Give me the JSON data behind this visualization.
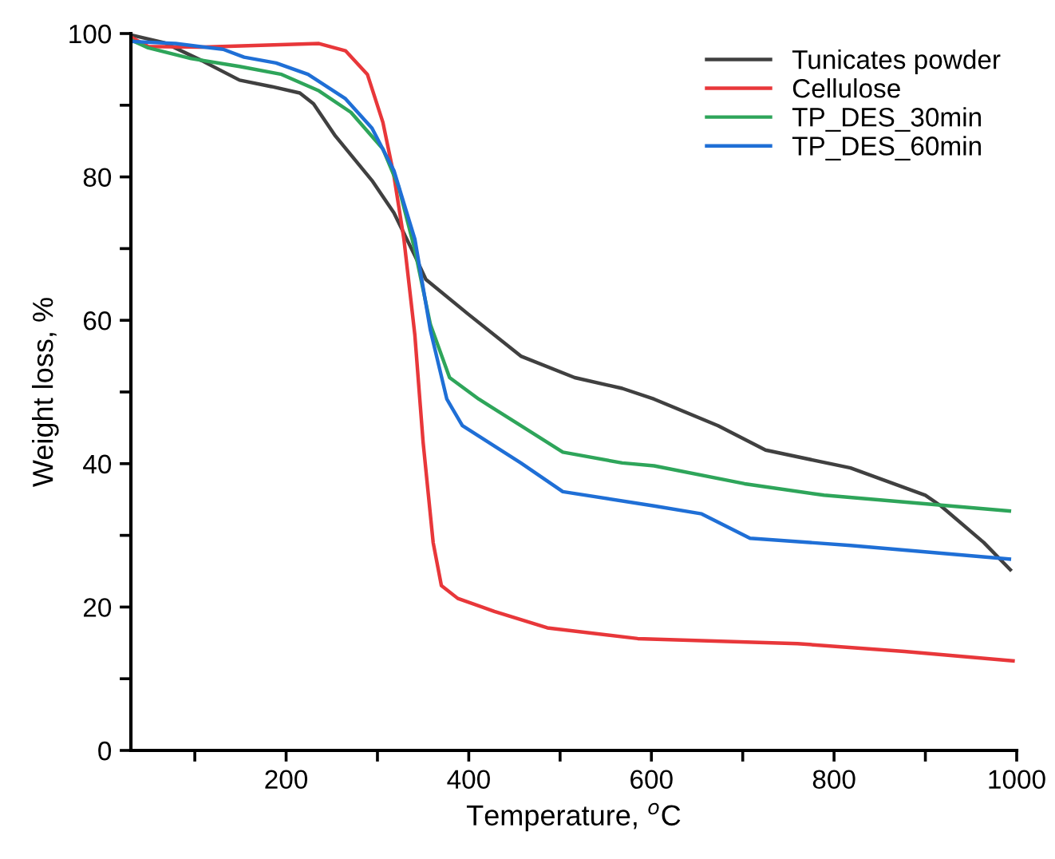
{
  "chart_data": {
    "type": "line",
    "xlabel": "Temperature, $^{o}$C",
    "ylabel": "Weight loss, %",
    "xlim": [
      30,
      1000
    ],
    "ylim": [
      0,
      100
    ],
    "xticks": [
      {
        "value": 100,
        "label": null
      },
      200,
      {
        "value": 300,
        "label": null
      },
      400,
      {
        "value": 500,
        "label": null
      },
      600,
      {
        "value": 700,
        "label": null
      },
      800,
      {
        "value": 900,
        "label": null
      },
      1000
    ],
    "yticks": [
      0,
      {
        "value": 10,
        "label": null
      },
      20,
      {
        "value": 30,
        "label": null
      },
      40,
      {
        "value": 50,
        "label": null
      },
      60,
      {
        "value": 70,
        "label": null
      },
      80,
      {
        "value": 90,
        "label": null
      },
      100
    ],
    "grid": false,
    "legend": "top right",
    "line_style": "solid",
    "marker": "none",
    "series": [
      {
        "name": "Tunicates powder",
        "color": "#404040",
        "x": [
          30,
          67,
          108,
          149,
          184,
          215,
          230,
          254,
          294,
          318,
          341,
          353,
          399,
          457,
          516,
          568,
          603,
          673,
          725,
          818,
          900,
          917,
          964,
          993
        ],
        "values": [
          99.8,
          98.7,
          96.2,
          93.5,
          92.6,
          91.7,
          90.2,
          85.7,
          79.5,
          75,
          69,
          65.7,
          60.9,
          55,
          52,
          50.5,
          49,
          45.3,
          41.9,
          39.4,
          35.6,
          34.1,
          29,
          25.2
        ]
      },
      {
        "name": "Cellulose",
        "color": "#e8373a",
        "x": [
          30,
          49,
          108,
          236,
          265,
          289,
          306,
          318,
          329,
          341,
          350,
          361,
          370,
          388,
          428,
          486,
          585,
          760,
          877,
          996
        ],
        "values": [
          99.5,
          98.2,
          98.1,
          98.6,
          97.6,
          94.3,
          87.6,
          80.2,
          71.3,
          57.9,
          43,
          29,
          23,
          21.2,
          19.4,
          17.1,
          15.6,
          14.9,
          13.8,
          12.5
        ]
      },
      {
        "name": "TP_DES_30min",
        "color": "#2ea55a",
        "x": [
          30,
          49,
          96,
          149,
          195,
          236,
          271,
          306,
          323,
          341,
          358,
          379,
          411,
          457,
          503,
          568,
          603,
          702,
          789,
          992
        ],
        "values": [
          99.1,
          98,
          96.5,
          95.4,
          94.3,
          92,
          89,
          83.9,
          78.7,
          69.8,
          59.4,
          52,
          49,
          45.3,
          41.6,
          40.1,
          39.7,
          37.2,
          35.6,
          33.4
        ]
      },
      {
        "name": "TP_DES_60min",
        "color": "#1f6fd6",
        "x": [
          30,
          79,
          131,
          154,
          189,
          224,
          265,
          294,
          318,
          341,
          358,
          376,
          393,
          457,
          503,
          603,
          655,
          708,
          818,
          992
        ],
        "values": [
          98.9,
          98.6,
          97.8,
          96.7,
          95.9,
          94.3,
          90.9,
          86.8,
          80.9,
          71.3,
          58.6,
          49,
          45.3,
          40.1,
          36.1,
          34.1,
          33,
          29.6,
          28.6,
          26.7
        ]
      }
    ]
  }
}
